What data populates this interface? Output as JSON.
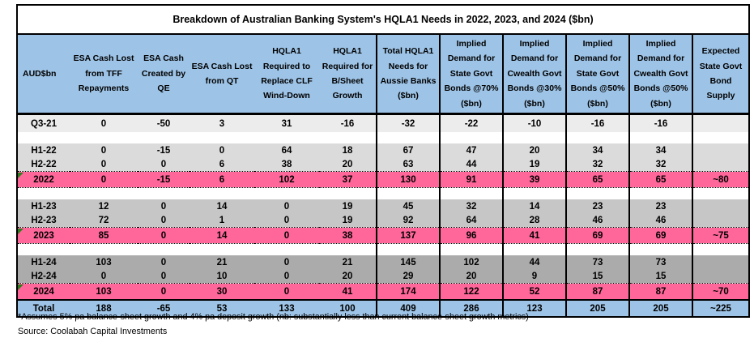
{
  "title": "Breakdown of Australian Banking System's HQLA1 Needs in 2022, 2023, and 2024 ($bn)",
  "footnote": "*Assumes 5% pa balance-sheet growth and 4% pa deposit growth (nb: substantially less than current balance-sheet growth metrics)",
  "source": "Source: Coolabah Capital Investments",
  "colors": {
    "header_blue": "#9DC3E6",
    "highlight_pink": "#FF6699",
    "gray_2021": "#ECECEC",
    "gray_2022": "#DBDBDB",
    "gray_2023": "#C6C6C6",
    "gray_2024": "#ABABAB",
    "flag_green": "#2F7D1E"
  },
  "table": {
    "columns": [
      "AUD$bn",
      "ESA Cash Lost from TFF Repayments",
      "ESA Cash Created by QE",
      "ESA Cash Lost from QT",
      "HQLA1 Required to Replace CLF Wind-Down",
      "HQLA1 Required for B/Sheet Growth",
      "Total HQLA1 Needs for Aussie Banks ($bn)",
      "Implied Demand for State Govt Bonds @70% ($bn)",
      "Implied Demand for Cwealth Govt Bonds @30% ($bn)",
      "Implied Demand for State Govt Bonds @50% ($bn)",
      "Implied Demand for Cwealth Govt Bonds @50% ($bn)",
      "Expected State Govt Bond Supply"
    ],
    "rows": [
      {
        "label": "Q3-21",
        "style": "light",
        "flag": false,
        "values": [
          "0",
          "-50",
          "3",
          "31",
          "-16",
          "-32",
          "-22",
          "-10",
          "-16",
          "-16",
          ""
        ]
      },
      {
        "label": "",
        "style": "blank",
        "flag": false,
        "values": [
          "",
          "",
          "",
          "",
          "",
          "",
          "",
          "",
          "",
          "",
          ""
        ]
      },
      {
        "label": "H1-22",
        "style": "g22",
        "flag": false,
        "values": [
          "0",
          "-15",
          "0",
          "64",
          "18",
          "67",
          "47",
          "20",
          "34",
          "34",
          ""
        ]
      },
      {
        "label": "H2-22",
        "style": "g22",
        "flag": false,
        "values": [
          "0",
          "0",
          "6",
          "38",
          "20",
          "63",
          "44",
          "19",
          "32",
          "32",
          ""
        ]
      },
      {
        "label": "2022",
        "style": "pink",
        "flag": true,
        "values": [
          "0",
          "-15",
          "6",
          "102",
          "37",
          "130",
          "91",
          "39",
          "65",
          "65",
          "~80"
        ]
      },
      {
        "label": "",
        "style": "blank",
        "flag": false,
        "values": [
          "",
          "",
          "",
          "",
          "",
          "",
          "",
          "",
          "",
          "",
          ""
        ]
      },
      {
        "label": "H1-23",
        "style": "g23",
        "flag": false,
        "values": [
          "12",
          "0",
          "14",
          "0",
          "19",
          "45",
          "32",
          "14",
          "23",
          "23",
          ""
        ]
      },
      {
        "label": "H2-23",
        "style": "g23",
        "flag": false,
        "values": [
          "72",
          "0",
          "1",
          "0",
          "19",
          "92",
          "64",
          "28",
          "46",
          "46",
          ""
        ]
      },
      {
        "label": "2023",
        "style": "pink",
        "flag": true,
        "values": [
          "85",
          "0",
          "14",
          "0",
          "38",
          "137",
          "96",
          "41",
          "69",
          "69",
          "~75"
        ]
      },
      {
        "label": "",
        "style": "blank",
        "flag": false,
        "values": [
          "",
          "",
          "",
          "",
          "",
          "",
          "",
          "",
          "",
          "",
          ""
        ]
      },
      {
        "label": "H1-24",
        "style": "g24",
        "flag": false,
        "values": [
          "103",
          "0",
          "21",
          "0",
          "21",
          "145",
          "102",
          "44",
          "73",
          "73",
          ""
        ]
      },
      {
        "label": "H2-24",
        "style": "g24",
        "flag": false,
        "values": [
          "0",
          "0",
          "10",
          "0",
          "20",
          "29",
          "20",
          "9",
          "15",
          "15",
          ""
        ]
      },
      {
        "label": "2024",
        "style": "pink",
        "flag": true,
        "values": [
          "103",
          "0",
          "30",
          "0",
          "41",
          "174",
          "122",
          "52",
          "87",
          "87",
          "~70"
        ]
      },
      {
        "label": "Total",
        "style": "total",
        "flag": false,
        "values": [
          "188",
          "-65",
          "53",
          "133",
          "100",
          "409",
          "286",
          "123",
          "205",
          "205",
          "~225"
        ]
      }
    ]
  }
}
